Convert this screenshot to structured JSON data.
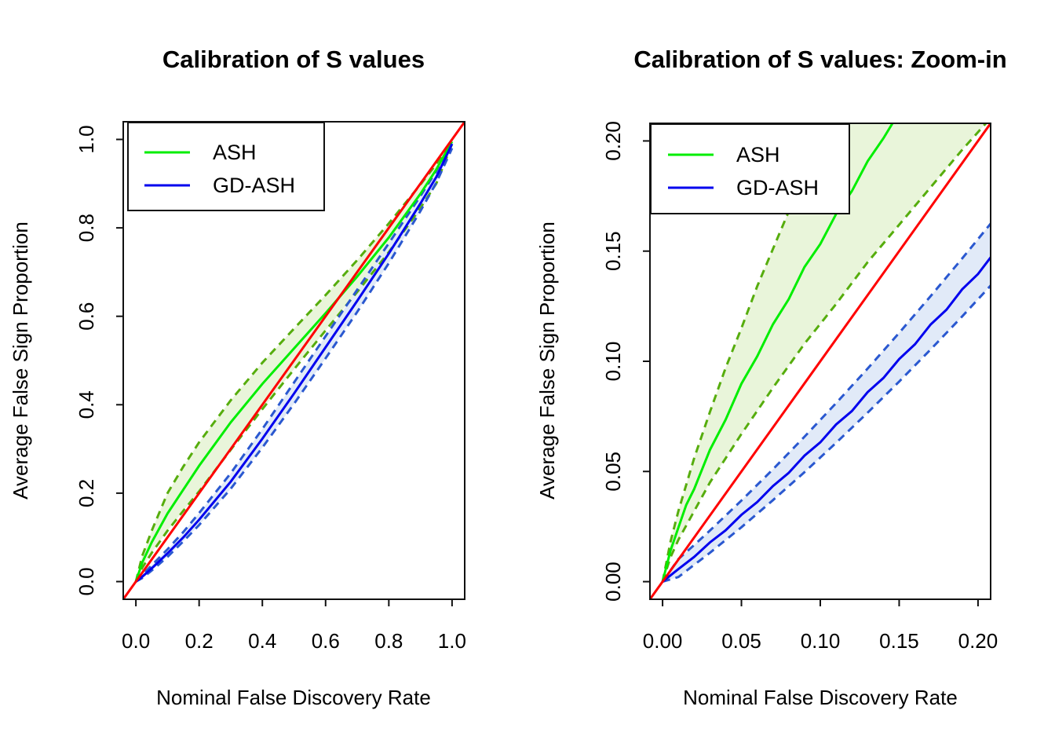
{
  "figure": {
    "background": "#ffffff",
    "axis_color": "#111111",
    "reference_line_color": "#FF0000"
  },
  "chart_data": [
    {
      "type": "line",
      "title": "Calibration of S values",
      "xlabel": "Nominal False Discovery Rate",
      "ylabel": "Average False Sign Proportion",
      "xlim": [
        0,
        1
      ],
      "ylim": [
        0,
        1
      ],
      "pad_frac": 0.04,
      "grid": false,
      "xticks": {
        "values": [
          0,
          0.2,
          0.4,
          0.6,
          0.8,
          1.0
        ],
        "labels": [
          "0.0",
          "0.2",
          "0.4",
          "0.6",
          "0.8",
          "1.0"
        ]
      },
      "yticks": {
        "values": [
          0,
          0.2,
          0.4,
          0.6,
          0.8,
          1.0
        ],
        "labels": [
          "0.0",
          "0.2",
          "0.4",
          "0.6",
          "0.8",
          "1.0"
        ]
      },
      "ref_line": {
        "type": "identity",
        "color": "#FF0000",
        "width": 3
      },
      "legend": {
        "position": "top-left",
        "entries": [
          {
            "label": "ASH",
            "color": "#00EE00"
          },
          {
            "label": "GD-ASH",
            "color": "#0000EE"
          }
        ]
      },
      "bands": [
        {
          "group": "ASH",
          "fill": "#E9F5DA"
        },
        {
          "group": "GD-ASH",
          "fill": "#E1EAF8"
        }
      ],
      "series": [
        {
          "name": "ASH mean",
          "group": "ASH",
          "role": "mean",
          "color": "#00EE00",
          "style": "solid",
          "width": 3,
          "x": [
            0,
            0.02,
            0.05,
            0.1,
            0.15,
            0.2,
            0.3,
            0.4,
            0.5,
            0.6,
            0.7,
            0.8,
            0.9,
            0.95,
            1
          ],
          "y": [
            0,
            0.043,
            0.089,
            0.154,
            0.208,
            0.262,
            0.36,
            0.447,
            0.527,
            0.607,
            0.69,
            0.778,
            0.877,
            0.932,
            0.995
          ]
        },
        {
          "name": "ASH upper band edge",
          "group": "ASH",
          "role": "upper",
          "color": "#56AD0D",
          "style": "dashed",
          "width": 3,
          "x": [
            0,
            0.02,
            0.05,
            0.1,
            0.15,
            0.2,
            0.3,
            0.4,
            0.5,
            0.6,
            0.7,
            0.8,
            0.9,
            0.95,
            1
          ],
          "y": [
            0,
            0.058,
            0.115,
            0.2,
            0.26,
            0.315,
            0.41,
            0.495,
            0.572,
            0.648,
            0.727,
            0.81,
            0.898,
            0.944,
            1
          ]
        },
        {
          "name": "ASH lower band edge",
          "group": "ASH",
          "role": "lower",
          "color": "#56AD0D",
          "style": "dashed",
          "width": 3,
          "x": [
            0,
            0.02,
            0.05,
            0.1,
            0.15,
            0.2,
            0.3,
            0.4,
            0.5,
            0.6,
            0.7,
            0.8,
            0.9,
            0.95,
            1
          ],
          "y": [
            0,
            0.031,
            0.065,
            0.115,
            0.16,
            0.204,
            0.298,
            0.39,
            0.48,
            0.568,
            0.655,
            0.745,
            0.845,
            0.9,
            0.99
          ]
        },
        {
          "name": "GD-ASH mean",
          "group": "GD-ASH",
          "role": "mean",
          "color": "#0000EE",
          "style": "solid",
          "width": 3,
          "x": [
            0,
            0.02,
            0.05,
            0.1,
            0.15,
            0.2,
            0.3,
            0.4,
            0.5,
            0.6,
            0.7,
            0.8,
            0.9,
            0.95,
            1
          ],
          "y": [
            0,
            0.011,
            0.03,
            0.064,
            0.1,
            0.14,
            0.226,
            0.323,
            0.425,
            0.53,
            0.635,
            0.742,
            0.855,
            0.915,
            0.99
          ]
        },
        {
          "name": "GD-ASH upper band edge",
          "group": "GD-ASH",
          "role": "upper",
          "color": "#2A58D0",
          "style": "dashed",
          "width": 3,
          "x": [
            0,
            0.02,
            0.05,
            0.1,
            0.15,
            0.2,
            0.3,
            0.4,
            0.5,
            0.6,
            0.7,
            0.8,
            0.9,
            0.95,
            1
          ],
          "y": [
            0,
            0.015,
            0.037,
            0.073,
            0.112,
            0.155,
            0.245,
            0.345,
            0.45,
            0.555,
            0.66,
            0.765,
            0.872,
            0.928,
            1
          ]
        },
        {
          "name": "GD-ASH lower band edge",
          "group": "GD-ASH",
          "role": "lower",
          "color": "#2A58D0",
          "style": "dashed",
          "width": 3,
          "x": [
            0,
            0.02,
            0.05,
            0.1,
            0.15,
            0.2,
            0.3,
            0.4,
            0.5,
            0.6,
            0.7,
            0.8,
            0.9,
            0.95,
            1
          ],
          "y": [
            0,
            0.008,
            0.025,
            0.056,
            0.091,
            0.128,
            0.21,
            0.303,
            0.402,
            0.505,
            0.61,
            0.72,
            0.838,
            0.902,
            0.98
          ]
        }
      ]
    },
    {
      "type": "line",
      "title": "Calibration of S values: Zoom-in",
      "xlabel": "Nominal False Discovery Rate",
      "ylabel": "Average False Sign Proportion",
      "xlim": [
        0,
        0.2
      ],
      "ylim": [
        0,
        0.2
      ],
      "pad_frac": 0.04,
      "grid": false,
      "xticks": {
        "values": [
          0,
          0.05,
          0.1,
          0.15,
          0.2
        ],
        "labels": [
          "0.00",
          "0.05",
          "0.10",
          "0.15",
          "0.20"
        ]
      },
      "yticks": {
        "values": [
          0,
          0.05,
          0.1,
          0.15,
          0.2
        ],
        "labels": [
          "0.00",
          "0.05",
          "0.10",
          "0.15",
          "0.20"
        ]
      },
      "ref_line": {
        "type": "identity",
        "color": "#FF0000",
        "width": 3
      },
      "legend": {
        "position": "top-left",
        "entries": [
          {
            "label": "ASH",
            "color": "#00EE00"
          },
          {
            "label": "GD-ASH",
            "color": "#0000EE"
          }
        ]
      },
      "bands": [
        {
          "group": "ASH",
          "fill": "#E9F5DA"
        },
        {
          "group": "GD-ASH",
          "fill": "#E1EAF8"
        }
      ],
      "series": [
        {
          "name": "ASH mean",
          "group": "ASH",
          "role": "mean",
          "color": "#00EE00",
          "style": "solid",
          "width": 3,
          "x": [
            0,
            0.005,
            0.01,
            0.015,
            0.02,
            0.03,
            0.04,
            0.05,
            0.06,
            0.07,
            0.08,
            0.09,
            0.1,
            0.11,
            0.12,
            0.13,
            0.14,
            0.15
          ],
          "y": [
            0,
            0.014,
            0.0245,
            0.0348,
            0.042,
            0.0598,
            0.0735,
            0.0898,
            0.1022,
            0.1168,
            0.1282,
            0.1428,
            0.1532,
            0.1668,
            0.1772,
            0.1908,
            0.2012,
            0.213
          ]
        },
        {
          "name": "ASH upper band edge",
          "group": "ASH",
          "role": "upper",
          "color": "#56AD0D",
          "style": "dashed",
          "width": 3,
          "x": [
            0,
            0.005,
            0.01,
            0.02,
            0.03,
            0.04,
            0.05,
            0.06,
            0.07,
            0.08,
            0.09,
            0.1,
            0.105
          ],
          "y": [
            0,
            0.018,
            0.032,
            0.056,
            0.077,
            0.097,
            0.115,
            0.134,
            0.151,
            0.168,
            0.185,
            0.2,
            0.208
          ]
        },
        {
          "name": "ASH lower band edge",
          "group": "ASH",
          "role": "lower",
          "color": "#56AD0D",
          "style": "dashed",
          "width": 3,
          "x": [
            0,
            0.005,
            0.01,
            0.02,
            0.03,
            0.05,
            0.07,
            0.09,
            0.11,
            0.13,
            0.15,
            0.17,
            0.19,
            0.205
          ],
          "y": [
            0,
            0.011,
            0.019,
            0.032,
            0.045,
            0.067,
            0.088,
            0.108,
            0.126,
            0.145,
            0.162,
            0.179,
            0.196,
            0.208
          ]
        },
        {
          "name": "GD-ASH mean",
          "group": "GD-ASH",
          "role": "mean",
          "color": "#0000EE",
          "style": "solid",
          "width": 3,
          "x": [
            0,
            0.01,
            0.02,
            0.03,
            0.04,
            0.05,
            0.06,
            0.07,
            0.08,
            0.09,
            0.1,
            0.11,
            0.12,
            0.13,
            0.14,
            0.15,
            0.16,
            0.17,
            0.18,
            0.19,
            0.2,
            0.21,
            0.222
          ],
          "y": [
            0,
            0.0057,
            0.0112,
            0.0178,
            0.0233,
            0.0303,
            0.0361,
            0.0434,
            0.0494,
            0.0572,
            0.0632,
            0.0713,
            0.0774,
            0.086,
            0.0924,
            0.101,
            0.1077,
            0.1167,
            0.1234,
            0.1327,
            0.1396,
            0.149,
            0.1587
          ]
        },
        {
          "name": "GD-ASH upper band edge",
          "group": "GD-ASH",
          "role": "upper",
          "color": "#2A58D0",
          "style": "dashed",
          "width": 3,
          "x": [
            0,
            0.01,
            0.02,
            0.03,
            0.05,
            0.07,
            0.09,
            0.11,
            0.13,
            0.15,
            0.17,
            0.19,
            0.21,
            0.222
          ],
          "y": [
            0,
            0.0102,
            0.0166,
            0.0232,
            0.0368,
            0.051,
            0.0658,
            0.081,
            0.0967,
            0.1129,
            0.1296,
            0.1467,
            0.1642,
            0.1749
          ]
        },
        {
          "name": "GD-ASH lower band edge",
          "group": "GD-ASH",
          "role": "lower",
          "color": "#2A58D0",
          "style": "dashed",
          "width": 3,
          "x": [
            0,
            0.01,
            0.02,
            0.03,
            0.05,
            0.07,
            0.09,
            0.11,
            0.13,
            0.15,
            0.17,
            0.19,
            0.21,
            0.222
          ],
          "y": [
            0,
            0.0021,
            0.0076,
            0.0131,
            0.0247,
            0.037,
            0.0497,
            0.063,
            0.0767,
            0.0908,
            0.1054,
            0.1204,
            0.1359,
            0.1457
          ]
        }
      ]
    }
  ]
}
